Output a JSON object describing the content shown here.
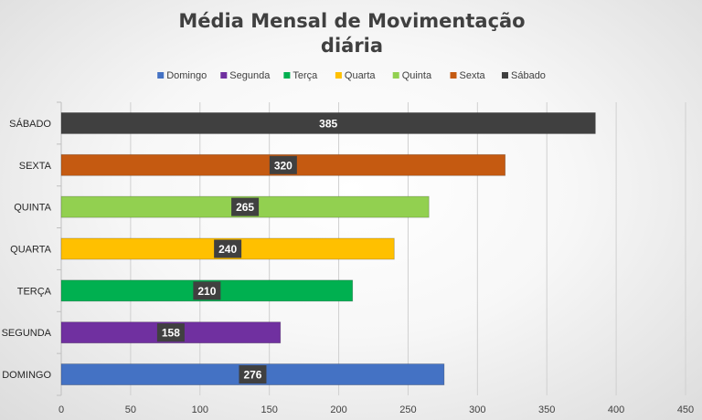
{
  "chart_data": {
    "type": "bar",
    "orientation": "horizontal",
    "title_lines": [
      "Média Mensal de Movimentação",
      "diária"
    ],
    "categories": [
      "DOMINGO",
      "SEGUNDA",
      "TERÇA",
      "QUARTA",
      "QUINTA",
      "SEXTA",
      "SÁBADO"
    ],
    "values": [
      276,
      158,
      210,
      240,
      265,
      320,
      385
    ],
    "colors": [
      "#4472C4",
      "#7030A0",
      "#00B050",
      "#FFC000",
      "#92D050",
      "#C55A11",
      "#404040"
    ],
    "legend": [
      "Domingo",
      "Segunda",
      "Terça",
      "Quarta",
      "Quinta",
      "Sexta",
      "Sábado"
    ],
    "legend_position": "top",
    "xlim": [
      0,
      450
    ],
    "xticks": [
      0,
      50,
      100,
      150,
      200,
      250,
      300,
      350,
      400,
      450
    ],
    "grid": "vertical"
  }
}
